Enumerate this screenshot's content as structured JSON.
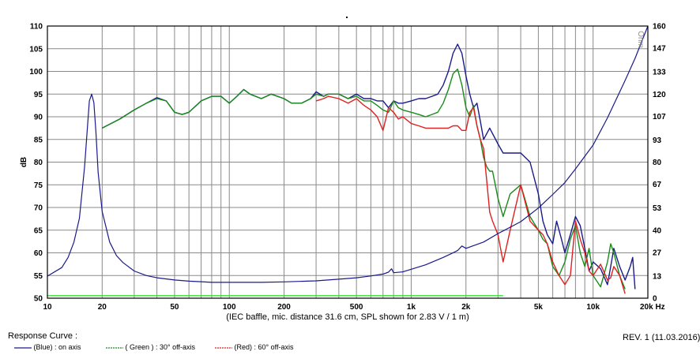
{
  "chart_data": {
    "type": "line",
    "xscale": "log",
    "xlim": [
      10,
      20000
    ],
    "ylim_left": [
      50,
      110
    ],
    "ylim_right": [
      0,
      160
    ],
    "ylabel_left": "dB",
    "ylabel_right": "Ohm",
    "x_ticks": [
      {
        "v": 10,
        "label": "10"
      },
      {
        "v": 20,
        "label": "20"
      },
      {
        "v": 50,
        "label": "50"
      },
      {
        "v": 100,
        "label": "100"
      },
      {
        "v": 200,
        "label": "200"
      },
      {
        "v": 500,
        "label": "500"
      },
      {
        "v": 1000,
        "label": "1k"
      },
      {
        "v": 2000,
        "label": "2k"
      },
      {
        "v": 5000,
        "label": "5k"
      },
      {
        "v": 10000,
        "label": "10k"
      },
      {
        "v": 20000,
        "label": "20k Hz"
      }
    ],
    "y_left_ticks": [
      "50",
      "55",
      "60",
      "65",
      "70",
      "75",
      "80",
      "85",
      "90",
      "95",
      "100",
      "105",
      "110"
    ],
    "y_right_ticks": [
      "0",
      "13",
      "27",
      "40",
      "53",
      "67",
      "80",
      "93",
      "107",
      "120",
      "133",
      "147",
      "160"
    ],
    "caption": "(IEC baffle, mic. distance 31.6 cm, SPL shown for 2.83 V / 1 m)",
    "grid": true,
    "series": [
      {
        "name": "(Blue) : on axis",
        "color": "#1a1a8c",
        "axis": "left",
        "x": [
          20,
          25,
          30,
          35,
          40,
          45,
          50,
          55,
          60,
          70,
          80,
          90,
          100,
          110,
          120,
          130,
          150,
          170,
          200,
          220,
          250,
          280,
          300,
          330,
          350,
          400,
          450,
          500,
          550,
          600,
          650,
          700,
          750,
          800,
          850,
          900,
          1000,
          1100,
          1200,
          1300,
          1400,
          1500,
          1600,
          1700,
          1800,
          1900,
          2000,
          2100,
          2200,
          2300,
          2400,
          2500,
          2700,
          3000,
          3200,
          3500,
          4000,
          4500,
          5000,
          5300,
          5600,
          6000,
          6300,
          6700,
          7000,
          7500,
          8000,
          8500,
          9000,
          9500,
          10000,
          11000,
          12000,
          12500,
          13000,
          14000,
          15000,
          16000,
          16500,
          17000
        ],
        "y": [
          87.5,
          89.5,
          91.5,
          93,
          94.2,
          93.5,
          91,
          90.5,
          91,
          93.5,
          94.5,
          94.5,
          93,
          94.5,
          96,
          95,
          94,
          95,
          94,
          93,
          93,
          94,
          95.5,
          94.5,
          95,
          95,
          94,
          95,
          94,
          94,
          93.5,
          93.5,
          92,
          93.5,
          93,
          93,
          93.5,
          94,
          94,
          94.5,
          95,
          97,
          100,
          104,
          106,
          104,
          99,
          95,
          92,
          93,
          89,
          85,
          87.5,
          84,
          82,
          82,
          82,
          80,
          73,
          67,
          64,
          62,
          67,
          63,
          60,
          64,
          68,
          66,
          61,
          56,
          58,
          56.5,
          53,
          57,
          61,
          57,
          54,
          57,
          59,
          52
        ]
      },
      {
        "name": "( Green ) : 30° off-axis",
        "color": "#1a8c1a",
        "axis": "left",
        "x": [
          20,
          25,
          30,
          35,
          40,
          45,
          50,
          55,
          60,
          70,
          80,
          90,
          100,
          110,
          120,
          130,
          150,
          170,
          200,
          220,
          250,
          280,
          300,
          330,
          350,
          400,
          450,
          500,
          550,
          600,
          650,
          700,
          750,
          800,
          850,
          900,
          1000,
          1100,
          1200,
          1300,
          1400,
          1500,
          1600,
          1700,
          1800,
          1900,
          2000,
          2100,
          2200,
          2300,
          2400,
          2500,
          2600,
          2700,
          2800,
          3000,
          3200,
          3500,
          4000,
          4500,
          5000,
          5300,
          5600,
          6000,
          6500,
          7000,
          7500,
          8000,
          8500,
          9000,
          9500,
          10000,
          11000,
          12000,
          12500,
          13000,
          14000,
          15000
        ],
        "y": [
          87.5,
          89.5,
          91.5,
          93,
          94,
          93.5,
          91,
          90.5,
          91,
          93.5,
          94.5,
          94.5,
          93,
          94.5,
          96,
          95,
          94,
          95,
          94,
          93,
          93,
          94,
          95,
          94.5,
          95,
          95,
          94,
          94.5,
          93.5,
          93.5,
          92.5,
          91.5,
          91,
          93.5,
          92,
          91.5,
          91,
          90.5,
          90,
          90.5,
          91,
          93,
          96,
          99.5,
          100.5,
          97,
          92,
          90,
          92.5,
          88,
          85,
          81,
          79,
          78,
          78,
          72,
          68,
          73,
          75,
          68,
          65,
          63,
          62,
          57,
          55,
          58,
          63,
          66,
          60,
          57,
          61,
          55,
          52.5,
          58,
          62,
          60,
          55,
          52
        ]
      },
      {
        "name": "(Red) : 60° off-axis",
        "color": "#e02020",
        "axis": "left",
        "x": [
          300,
          330,
          350,
          400,
          450,
          500,
          550,
          600,
          650,
          700,
          750,
          800,
          850,
          900,
          1000,
          1100,
          1200,
          1300,
          1400,
          1500,
          1600,
          1700,
          1800,
          1900,
          2000,
          2100,
          2200,
          2300,
          2400,
          2500,
          2600,
          2700,
          2800,
          3000,
          3200,
          3500,
          4000,
          4500,
          5000,
          5300,
          5600,
          6000,
          6500,
          7000,
          7500,
          8000,
          8500,
          9000,
          9500,
          10000,
          11000,
          12000,
          12500,
          13000,
          14000,
          15000
        ],
        "y": [
          93.5,
          94,
          94.5,
          94,
          93,
          94,
          92.5,
          91.5,
          90,
          87,
          92,
          91,
          89.5,
          90,
          88.5,
          88,
          87.5,
          87.5,
          87.5,
          87.5,
          87.5,
          88,
          88,
          87,
          87,
          91,
          92,
          88,
          85,
          83,
          76,
          69,
          67,
          64,
          58,
          65,
          75,
          67,
          65,
          64,
          62,
          58,
          55,
          53,
          55,
          67,
          63,
          60,
          56,
          55,
          57.5,
          54,
          54.5,
          57,
          55,
          51
        ]
      },
      {
        "name": "Impedance",
        "color": "#1a1a8c",
        "axis": "right",
        "x": [
          10,
          12,
          13,
          14,
          15,
          16,
          17,
          17.5,
          18,
          18.5,
          19,
          20,
          22,
          24,
          26,
          30,
          35,
          40,
          50,
          60,
          70,
          80,
          100,
          150,
          200,
          300,
          400,
          500,
          600,
          700,
          750,
          780,
          800,
          900,
          1000,
          1200,
          1500,
          1700,
          1800,
          1900,
          2000,
          2500,
          3000,
          4000,
          5000,
          6000,
          7000,
          8000,
          10000,
          12000,
          15000,
          17000,
          20000
        ],
        "y": [
          13,
          18,
          24,
          33,
          47,
          77,
          116,
          120,
          115,
          97,
          74,
          51,
          33,
          25,
          21,
          16,
          13.3,
          12,
          10.7,
          10,
          9.7,
          9.3,
          9.3,
          9.3,
          9.6,
          10.2,
          11.2,
          12,
          13.1,
          14.2,
          15.3,
          17.3,
          15,
          15.5,
          17,
          19.6,
          24,
          26.7,
          28,
          30.7,
          29.3,
          33,
          38,
          45,
          53,
          61,
          68,
          76,
          90,
          106,
          128,
          141,
          160
        ]
      },
      {
        "name": "",
        "color": "#33dd33",
        "axis": "right",
        "x": [
          10,
          3200
        ],
        "y": [
          1.5,
          1.5
        ]
      }
    ]
  },
  "legend": {
    "heading": "Response Curve :",
    "items": [
      {
        "label": "(Blue) : on axis",
        "color": "#1a1a8c"
      },
      {
        "label": "( Green ) : 30° off-axis",
        "color": "#1a8c1a"
      },
      {
        "label": "(Red) : 60° off-axis",
        "color": "#e02020"
      }
    ]
  },
  "revision": "REV. 1 (11.03.2016)"
}
